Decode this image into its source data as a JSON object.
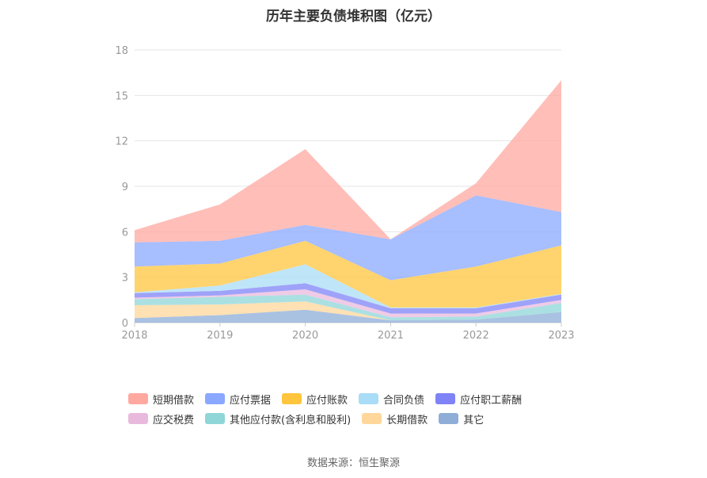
{
  "chart_data": {
    "type": "area",
    "title": "历年主要负债堆积图（亿元）",
    "x": [
      "2018",
      "2019",
      "2020",
      "2021",
      "2022",
      "2023"
    ],
    "ylim": [
      0,
      18
    ],
    "yticks": [
      0,
      3,
      6,
      9,
      12,
      15,
      18
    ],
    "grid": true,
    "legend_position": "bottom",
    "series": [
      {
        "name": "其它",
        "color": "#8eaed8",
        "values": [
          0.3,
          0.5,
          0.85,
          0.15,
          0.2,
          0.7
        ]
      },
      {
        "name": "长期借款",
        "color": "#ffd79a",
        "values": [
          0.85,
          0.7,
          0.55,
          0.0,
          0.0,
          0.0
        ]
      },
      {
        "name": "其他应付款(含利息和股利)",
        "color": "#8fd6d8",
        "values": [
          0.4,
          0.5,
          0.45,
          0.2,
          0.2,
          0.6
        ]
      },
      {
        "name": "应交税费",
        "color": "#e9b9dd",
        "values": [
          0.1,
          0.1,
          0.35,
          0.25,
          0.2,
          0.2
        ]
      },
      {
        "name": "应付职工薪酬",
        "color": "#7f83f7",
        "values": [
          0.3,
          0.3,
          0.4,
          0.35,
          0.35,
          0.35
        ]
      },
      {
        "name": "合同负债",
        "color": "#a9dcf7",
        "values": [
          0.05,
          0.35,
          1.25,
          0.05,
          0.05,
          0.05
        ]
      },
      {
        "name": "应付账款",
        "color": "#ffc53d",
        "values": [
          1.7,
          1.45,
          1.55,
          1.8,
          2.7,
          3.2
        ]
      },
      {
        "name": "应付票据",
        "color": "#8aa8ff",
        "values": [
          1.6,
          1.5,
          1.05,
          2.7,
          4.7,
          2.2
        ]
      },
      {
        "name": "短期借款",
        "color": "#ffa8a0",
        "values": [
          0.8,
          2.4,
          5.0,
          0.0,
          0.8,
          8.7
        ]
      }
    ],
    "legend_order": [
      "短期借款",
      "应付票据",
      "应付账款",
      "合同负债",
      "应付职工薪酬",
      "应交税费",
      "其他应付款(含利息和股利)",
      "长期借款",
      "其它"
    ]
  },
  "source": "数据来源：恒生聚源"
}
